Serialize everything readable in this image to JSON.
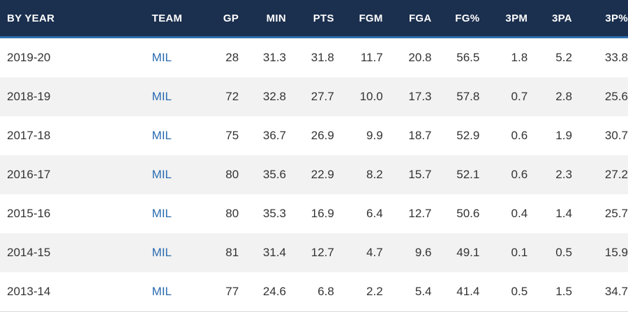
{
  "table": {
    "headers": {
      "year": "BY YEAR",
      "team": "TEAM",
      "gp": "GP",
      "min": "MIN",
      "pts": "PTS",
      "fgm": "FGM",
      "fga": "FGA",
      "fgpct": "FG%",
      "tpm": "3PM",
      "tpa": "3PA",
      "tppct": "3P%"
    },
    "rows": [
      {
        "year": "2019-20",
        "team": "MIL",
        "gp": "28",
        "min": "31.3",
        "pts": "31.8",
        "fgm": "11.7",
        "fga": "20.8",
        "fgpct": "56.5",
        "tpm": "1.8",
        "tpa": "5.2",
        "tppct": "33.8"
      },
      {
        "year": "2018-19",
        "team": "MIL",
        "gp": "72",
        "min": "32.8",
        "pts": "27.7",
        "fgm": "10.0",
        "fga": "17.3",
        "fgpct": "57.8",
        "tpm": "0.7",
        "tpa": "2.8",
        "tppct": "25.6"
      },
      {
        "year": "2017-18",
        "team": "MIL",
        "gp": "75",
        "min": "36.7",
        "pts": "26.9",
        "fgm": "9.9",
        "fga": "18.7",
        "fgpct": "52.9",
        "tpm": "0.6",
        "tpa": "1.9",
        "tppct": "30.7"
      },
      {
        "year": "2016-17",
        "team": "MIL",
        "gp": "80",
        "min": "35.6",
        "pts": "22.9",
        "fgm": "8.2",
        "fga": "15.7",
        "fgpct": "52.1",
        "tpm": "0.6",
        "tpa": "2.3",
        "tppct": "27.2"
      },
      {
        "year": "2015-16",
        "team": "MIL",
        "gp": "80",
        "min": "35.3",
        "pts": "16.9",
        "fgm": "6.4",
        "fga": "12.7",
        "fgpct": "50.6",
        "tpm": "0.4",
        "tpa": "1.4",
        "tppct": "25.7"
      },
      {
        "year": "2014-15",
        "team": "MIL",
        "gp": "81",
        "min": "31.4",
        "pts": "12.7",
        "fgm": "4.7",
        "fga": "9.6",
        "fgpct": "49.1",
        "tpm": "0.1",
        "tpa": "0.5",
        "tppct": "15.9"
      },
      {
        "year": "2013-14",
        "team": "MIL",
        "gp": "77",
        "min": "24.6",
        "pts": "6.8",
        "fgm": "2.2",
        "fga": "5.4",
        "fgpct": "41.4",
        "tpm": "0.5",
        "tpa": "1.5",
        "tppct": "34.7"
      }
    ]
  },
  "colors": {
    "header_bg": "#1b2f4e",
    "header_accent": "#2f6fb0",
    "link": "#2a6cb0",
    "stripe": "#f2f2f2"
  }
}
